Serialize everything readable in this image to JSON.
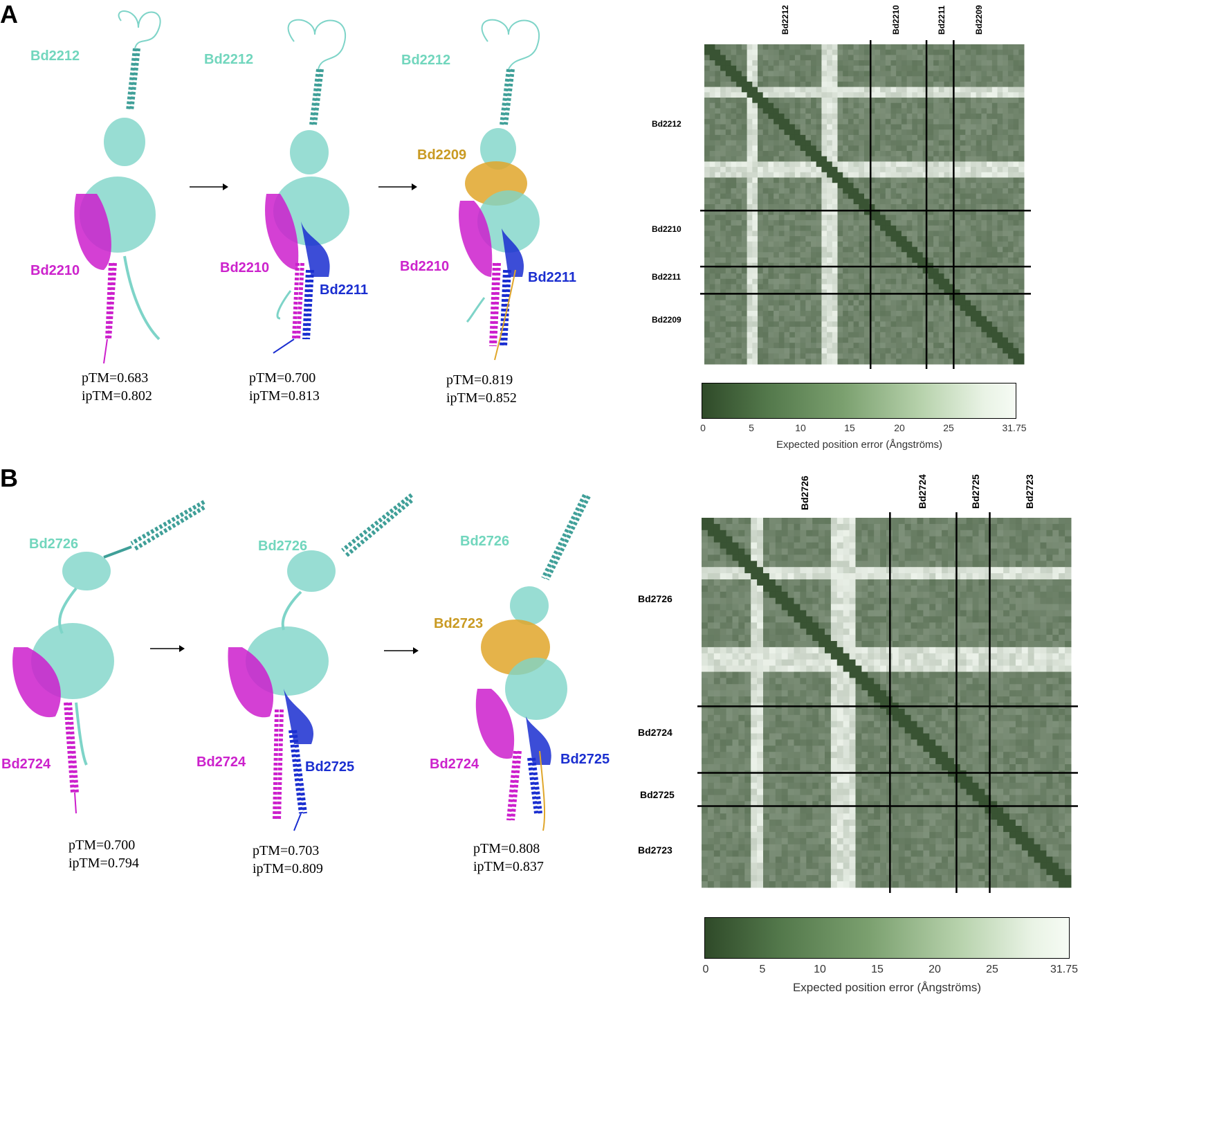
{
  "colors": {
    "cyan": "#7ed4c8",
    "cyan_dark": "#3f9f98",
    "magenta": "#cc1fcc",
    "blue": "#1a2ed0",
    "gold": "#e0a62a",
    "label_cyan": "#71d6bd",
    "label_magenta": "#cc22cc",
    "label_blue": "#1a2ed0",
    "label_gold": "#c99a22",
    "pae_dark": "#2f4a29",
    "pae_light": "#f6fbf4"
  },
  "panels": [
    {
      "letter": "A",
      "models": [
        {
          "labels": [
            "Bd2212",
            "Bd2210"
          ],
          "scores": [
            "pTM=0.683",
            "ipTM=0.802"
          ]
        },
        {
          "labels": [
            "Bd2212",
            "Bd2210",
            "Bd2211"
          ],
          "scores": [
            "pTM=0.700",
            "ipTM=0.813"
          ]
        },
        {
          "labels": [
            "Bd2212",
            "Bd2209",
            "Bd2210",
            "Bd2211"
          ],
          "scores": [
            "pTM=0.819",
            "ipTM=0.852"
          ]
        }
      ],
      "pae": {
        "column_labels": [
          "Bd2212",
          "Bd2210",
          "Bd2211",
          "Bd2209"
        ],
        "row_labels": [
          "Bd2212",
          "Bd2210",
          "Bd2211",
          "Bd2209"
        ],
        "chain_fractions": [
          0.52,
          0.175,
          0.085,
          0.22
        ]
      },
      "colorbar": {
        "ticks": [
          "0",
          "5",
          "10",
          "15",
          "20",
          "25",
          "31.75"
        ],
        "title": "Expected position error (Ångströms)"
      }
    },
    {
      "letter": "B",
      "models": [
        {
          "labels": [
            "Bd2726",
            "Bd2724"
          ],
          "scores": [
            "pTM=0.700",
            "ipTM=0.794"
          ]
        },
        {
          "labels": [
            "Bd2726",
            "Bd2724",
            "Bd2725"
          ],
          "scores": [
            "pTM=0.703",
            "ipTM=0.809"
          ]
        },
        {
          "labels": [
            "Bd2726",
            "Bd2723",
            "Bd2724",
            "Bd2725"
          ],
          "scores": [
            "pTM=0.808",
            "ipTM=0.837"
          ]
        }
      ],
      "pae": {
        "column_labels": [
          "Bd2726",
          "Bd2724",
          "Bd2725",
          "Bd2723"
        ],
        "row_labels": [
          "Bd2726",
          "Bd2724",
          "Bd2725",
          "Bd2723"
        ],
        "chain_fractions": [
          0.51,
          0.18,
          0.09,
          0.22
        ]
      },
      "colorbar": {
        "ticks": [
          "0",
          "5",
          "10",
          "15",
          "20",
          "25",
          "31.75"
        ],
        "title": "Expected position error (Ångströms)"
      }
    }
  ]
}
